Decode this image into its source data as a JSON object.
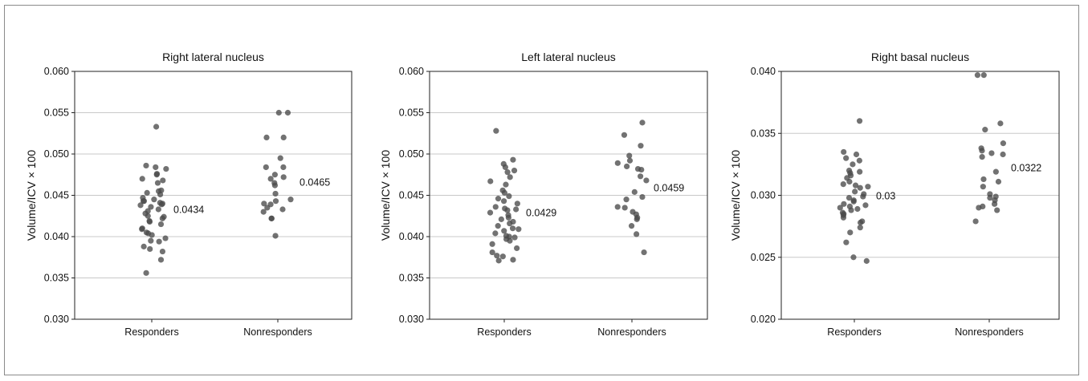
{
  "chart_data": [
    {
      "type": "scatter",
      "title": "Right lateral nucleus",
      "ylabel": "Volume/ICV × 100",
      "ylim": [
        0.03,
        0.06
      ],
      "yticks": [
        0.03,
        0.035,
        0.04,
        0.045,
        0.05,
        0.055,
        0.06
      ],
      "ytick_labels": [
        "0.030",
        "0.035",
        "0.040",
        "0.045",
        "0.050",
        "0.055",
        "0.060"
      ],
      "categories": [
        "Responders",
        "Nonresponders"
      ],
      "grid": true,
      "series": [
        {
          "category": "Responders",
          "mean_label": "0.0434",
          "values": [
            0.0533,
            0.0486,
            0.0484,
            0.0482,
            0.0476,
            0.0475,
            0.047,
            0.0468,
            0.0465,
            0.0456,
            0.0455,
            0.0453,
            0.0451,
            0.0447,
            0.0445,
            0.0443,
            0.0443,
            0.0441,
            0.044,
            0.0439,
            0.0438,
            0.0436,
            0.0433,
            0.0431,
            0.0428,
            0.0425,
            0.0424,
            0.0422,
            0.0419,
            0.0418,
            0.0415,
            0.041,
            0.0409,
            0.0405,
            0.0404,
            0.0402,
            0.0398,
            0.0395,
            0.0394,
            0.0388,
            0.0385,
            0.0382,
            0.0372,
            0.0356
          ]
        },
        {
          "category": "Nonresponders",
          "mean_label": "0.0465",
          "values": [
            0.055,
            0.055,
            0.052,
            0.052,
            0.0495,
            0.0484,
            0.0484,
            0.0475,
            0.0472,
            0.047,
            0.0465,
            0.0462,
            0.0452,
            0.0445,
            0.0443,
            0.044,
            0.0439,
            0.0435,
            0.0433,
            0.043,
            0.0422,
            0.0422,
            0.0401
          ]
        }
      ]
    },
    {
      "type": "scatter",
      "title": "Left lateral nucleus",
      "ylabel": "Volume/ICV × 100",
      "ylim": [
        0.03,
        0.06
      ],
      "yticks": [
        0.03,
        0.035,
        0.04,
        0.045,
        0.05,
        0.055,
        0.06
      ],
      "ytick_labels": [
        "0.030",
        "0.035",
        "0.040",
        "0.045",
        "0.050",
        "0.055",
        "0.060"
      ],
      "categories": [
        "Responders",
        "Nonresponders"
      ],
      "grid": true,
      "series": [
        {
          "category": "Responders",
          "mean_label": "0.0429",
          "values": [
            0.0528,
            0.0493,
            0.0488,
            0.0484,
            0.048,
            0.0478,
            0.0472,
            0.0467,
            0.0463,
            0.0456,
            0.0453,
            0.0449,
            0.0446,
            0.0443,
            0.044,
            0.0436,
            0.0434,
            0.0433,
            0.0432,
            0.0429,
            0.0426,
            0.0423,
            0.0421,
            0.0418,
            0.0416,
            0.0413,
            0.041,
            0.0409,
            0.0407,
            0.0404,
            0.0401,
            0.04,
            0.0399,
            0.0397,
            0.0395,
            0.0391,
            0.0386,
            0.0381,
            0.0377,
            0.0376,
            0.0372,
            0.0371
          ]
        },
        {
          "category": "Nonresponders",
          "mean_label": "0.0459",
          "values": [
            0.0538,
            0.0523,
            0.051,
            0.0498,
            0.0492,
            0.0489,
            0.0485,
            0.0482,
            0.0481,
            0.0473,
            0.0468,
            0.0454,
            0.0448,
            0.0445,
            0.0436,
            0.0435,
            0.043,
            0.0427,
            0.0423,
            0.0421,
            0.0413,
            0.0403,
            0.0381
          ]
        }
      ]
    },
    {
      "type": "scatter",
      "title": "Right basal nucleus",
      "ylabel": "Volume/ICV × 100",
      "ylim": [
        0.02,
        0.04
      ],
      "yticks": [
        0.02,
        0.025,
        0.03,
        0.035,
        0.04
      ],
      "ytick_labels": [
        "0.020",
        "0.025",
        "0.030",
        "0.035",
        "0.040"
      ],
      "categories": [
        "Responders",
        "Nonresponders"
      ],
      "grid": true,
      "series": [
        {
          "category": "Responders",
          "mean_label": "0.03",
          "values": [
            0.036,
            0.0335,
            0.0333,
            0.033,
            0.0328,
            0.0325,
            0.032,
            0.0319,
            0.0318,
            0.0316,
            0.0314,
            0.0311,
            0.0309,
            0.0308,
            0.0307,
            0.0306,
            0.0303,
            0.0301,
            0.0299,
            0.0298,
            0.0296,
            0.0295,
            0.0293,
            0.0292,
            0.0291,
            0.029,
            0.0289,
            0.0288,
            0.0286,
            0.0285,
            0.0284,
            0.0282,
            0.0279,
            0.0278,
            0.0274,
            0.027,
            0.0262,
            0.025,
            0.0247
          ]
        },
        {
          "category": "Nonresponders",
          "mean_label": "0.0322",
          "values": [
            0.0397,
            0.0397,
            0.0358,
            0.0353,
            0.0342,
            0.0338,
            0.0336,
            0.0334,
            0.0333,
            0.0331,
            0.0319,
            0.0313,
            0.0311,
            0.0307,
            0.0301,
            0.0299,
            0.0298,
            0.0296,
            0.0293,
            0.0291,
            0.029,
            0.0288,
            0.0279
          ]
        }
      ]
    }
  ]
}
